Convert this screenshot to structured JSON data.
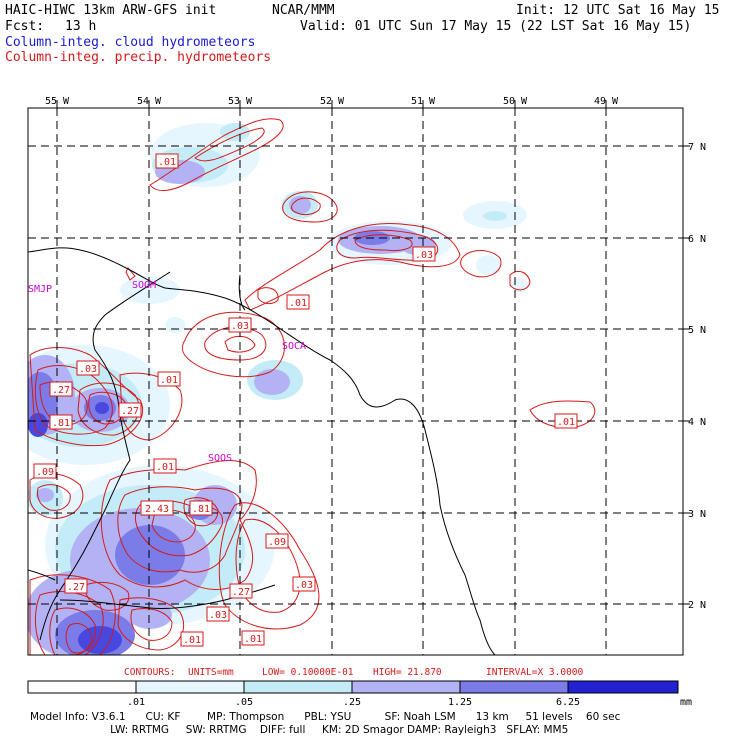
{
  "header": {
    "model": "HAIC-HIWC 13km ARW-GFS init",
    "org": "NCAR/MMM",
    "init": "Init: 12 UTC Sat 16 May 15",
    "fcst_label": "Fcst:",
    "fcst_value": "13 h",
    "valid": "Valid: 01 UTC Sun 17 May 15 (22 LST Sat 16 May 15)",
    "field1": "Column-integ. cloud hydrometeors",
    "field2": "Column-integ. precip. hydrometeors"
  },
  "colors": {
    "cloud_field_title": "#1a1ad0",
    "precip_field_title": "#d41a1a",
    "contour": "#d41a1a",
    "station": "#cc00cc",
    "shade_levels": [
      "#e6f6ff",
      "#c4ecf8",
      "#b2b2f4",
      "#7c7ce8",
      "#4848e0",
      "#2222d0"
    ]
  },
  "longitude_labels": [
    "55 W",
    "54 W",
    "53 W",
    "52 W",
    "51 W",
    "50 W",
    "49 W"
  ],
  "latitude_labels": [
    "7 N",
    "6 N",
    "5 N",
    "4 N",
    "3 N",
    "2 N"
  ],
  "stations": [
    "SMJP",
    "SOGM",
    "SOCA",
    "SOOS"
  ],
  "contour_labels": [
    ".01",
    ".01",
    ".03",
    ".01",
    ".03",
    ".03",
    ".27",
    ".01",
    ".27",
    ".81",
    ".09",
    ".01",
    "2.43",
    ".81",
    ".09",
    ".03",
    ".27",
    ".27",
    ".03",
    ".01",
    ".01"
  ],
  "contours_info": {
    "title": "CONTOURS:",
    "units": "UNITS=mm",
    "low": "LOW= 0.10000E-01",
    "high": "HIGH=  21.870",
    "interval": "INTERVAL=X  3.0000"
  },
  "colorbar": {
    "ticks": [
      ".01",
      ".05",
      ".25",
      "1.25",
      "6.25"
    ],
    "unit": "mm"
  },
  "model_info": {
    "line1": "Model Info: V3.6.1      CU: KF        MP: Thompson      PBL: YSU          SF: Noah LSM      13 km     51 levels    60 sec",
    "line2": "                        LW: RRTMG     SW: RRTMG    DIFF: full     KM: 2D Smagor DAMP: Rayleigh3   SFLAY: MM5"
  }
}
